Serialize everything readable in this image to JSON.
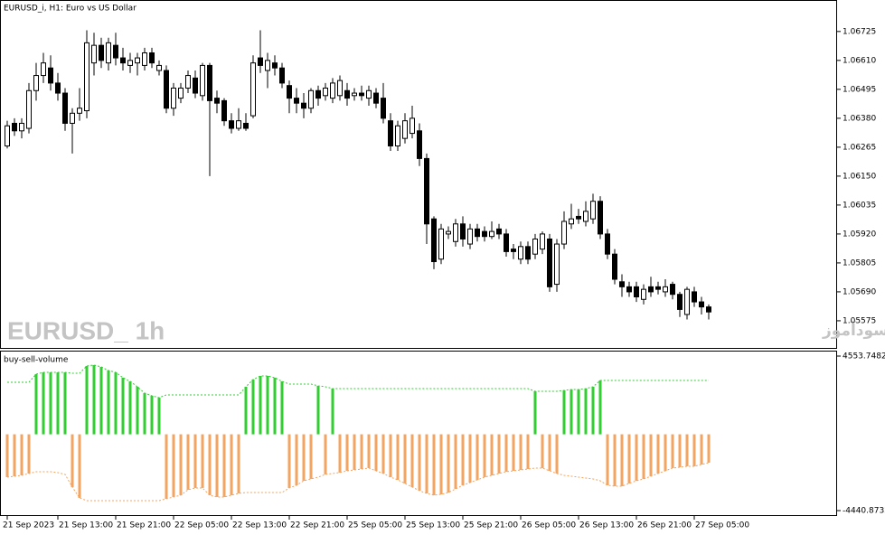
{
  "chart_data": [
    {
      "type": "candlestick",
      "title": "EURUSD_i, H1:  Euro vs US Dollar",
      "watermark": "EURUSD_ 1h",
      "annotation": "انتشار در سایت سودآموز",
      "categories": [
        "21 Sep 2023",
        null,
        null,
        null,
        null,
        null,
        null,
        "21 Sep 13:00",
        null,
        null,
        null,
        null,
        null,
        null,
        null,
        "21 Sep 21:00",
        null,
        null,
        null,
        null,
        null,
        null,
        null,
        "22 Sep 05:00",
        null,
        null,
        null,
        null,
        null,
        null,
        null,
        "22 Sep 13:00",
        null,
        null,
        null,
        null,
        null,
        null,
        null,
        "22 Sep 21:00",
        null,
        null,
        null,
        null,
        null,
        null,
        null,
        "25 Sep 05:00",
        null,
        null,
        null,
        null,
        null,
        null,
        null,
        "25 Sep 13:00",
        null,
        null,
        null,
        null,
        null,
        null,
        null,
        "25 Sep 21:00",
        null,
        null,
        null,
        null,
        null,
        null,
        null,
        "26 Sep 05:00",
        null,
        null,
        null,
        null,
        null,
        null,
        null,
        "26 Sep 13:00",
        null,
        null,
        null,
        null,
        null,
        null,
        null,
        "26 Sep 21:00",
        null,
        null,
        null,
        null,
        null,
        null,
        null,
        "27 Sep 05:00",
        null,
        null
      ],
      "open": [
        1.0627,
        1.0636,
        1.0633,
        1.0634,
        1.0649,
        1.0655,
        1.0658,
        1.0652,
        1.0648,
        1.0636,
        1.064,
        1.0641,
        1.066,
        1.0667,
        1.066,
        1.0667,
        1.0662,
        1.0659,
        1.066,
        1.0659,
        1.0664,
        1.0657,
        1.0657,
        1.0642,
        1.0646,
        1.065,
        1.0654,
        1.0647,
        1.0659,
        1.0646,
        1.0645,
        1.0637,
        1.0634,
        1.0636,
        1.0639,
        1.0662,
        1.0657,
        1.066,
        1.0658,
        1.0651,
        1.0646,
        1.0644,
        1.0642,
        1.0649,
        1.0647,
        1.0646,
        1.0647,
        1.0649,
        1.0647,
        1.0648,
        1.0646,
        1.0648,
        1.0646,
        1.0637,
        1.0627,
        1.063,
        1.0632,
        1.0633,
        1.0622,
        1.0598,
        1.0582,
        1.0592,
        1.0589,
        1.0596,
        1.0588,
        1.0594,
        1.0593,
        1.0591,
        1.0594,
        1.0592,
        1.0586,
        1.0582,
        1.0587,
        1.0584,
        1.0586,
        1.059,
        1.0572,
        1.0588,
        1.0596,
        1.0599,
        1.0597,
        1.0598,
        1.0605,
        1.0592,
        1.0584,
        1.0573,
        1.0571,
        1.0571,
        1.0566,
        1.0571,
        1.0571,
        1.0569,
        1.0572,
        1.0568,
        1.056,
        1.0569,
        1.0565,
        1.0563
      ],
      "high": [
        1.0637,
        1.0638,
        1.0638,
        1.0652,
        1.066,
        1.0664,
        1.0663,
        1.0656,
        1.065,
        1.0642,
        1.065,
        1.0673,
        1.0672,
        1.067,
        1.067,
        1.0672,
        1.0666,
        1.0664,
        1.0664,
        1.0666,
        1.0666,
        1.0661,
        1.0659,
        1.0652,
        1.0652,
        1.0657,
        1.0657,
        1.066,
        1.066,
        1.0649,
        1.0646,
        1.064,
        1.0642,
        1.064,
        1.0663,
        1.0673,
        1.0664,
        1.0663,
        1.066,
        1.0653,
        1.065,
        1.0648,
        1.065,
        1.0651,
        1.0652,
        1.0654,
        1.0655,
        1.0652,
        1.065,
        1.0651,
        1.0651,
        1.065,
        1.0652,
        1.064,
        1.0637,
        1.064,
        1.0643,
        1.0636,
        1.0624,
        1.0599,
        1.0596,
        1.0595,
        1.0598,
        1.0599,
        1.0596,
        1.0596,
        1.0595,
        1.0597,
        1.0596,
        1.0594,
        1.0588,
        1.0589,
        1.0589,
        1.0592,
        1.0593,
        1.0592,
        1.059,
        1.0601,
        1.0604,
        1.0602,
        1.0605,
        1.0608,
        1.0607,
        1.0594,
        1.0586,
        1.0576,
        1.0573,
        1.0573,
        1.0572,
        1.0575,
        1.0573,
        1.0574,
        1.0573,
        1.0569,
        1.0571,
        1.0571,
        1.0567,
        1.0564
      ],
      "low": [
        1.0626,
        1.0631,
        1.063,
        1.0632,
        1.0645,
        1.0652,
        1.0649,
        1.0645,
        1.0633,
        1.0624,
        1.0637,
        1.0638,
        1.0655,
        1.0658,
        1.0657,
        1.0659,
        1.0657,
        1.0656,
        1.0655,
        1.0657,
        1.0658,
        1.0655,
        1.064,
        1.0639,
        1.0644,
        1.0648,
        1.0646,
        1.0645,
        1.0615,
        1.064,
        1.0635,
        1.0632,
        1.0633,
        1.0633,
        1.0638,
        1.0656,
        1.065,
        1.0655,
        1.065,
        1.064,
        1.064,
        1.0638,
        1.064,
        1.0643,
        1.0645,
        1.0644,
        1.0645,
        1.0643,
        1.0645,
        1.0645,
        1.0643,
        1.0642,
        1.0636,
        1.0625,
        1.0625,
        1.0628,
        1.063,
        1.0619,
        1.0588,
        1.0578,
        1.058,
        1.059,
        1.0587,
        1.0587,
        1.0586,
        1.0589,
        1.0589,
        1.059,
        1.059,
        1.0583,
        1.0582,
        1.058,
        1.058,
        1.0582,
        1.0584,
        1.0569,
        1.0569,
        1.0586,
        1.0594,
        1.0596,
        1.0595,
        1.0596,
        1.059,
        1.0582,
        1.0572,
        1.0567,
        1.0567,
        1.0565,
        1.0564,
        1.0567,
        1.0568,
        1.0567,
        1.0566,
        1.0559,
        1.0558,
        1.0563,
        1.056,
        1.0558
      ],
      "close": [
        1.0635,
        1.0633,
        1.0636,
        1.0649,
        1.0655,
        1.066,
        1.0652,
        1.0648,
        1.0636,
        1.064,
        1.0642,
        1.0668,
        1.0667,
        1.0661,
        1.0668,
        1.0662,
        1.066,
        1.0661,
        1.0662,
        1.0664,
        1.066,
        1.0659,
        1.0642,
        1.065,
        1.065,
        1.0655,
        1.0648,
        1.0659,
        1.0645,
        1.0644,
        1.0637,
        1.0634,
        1.0637,
        1.0634,
        1.066,
        1.0659,
        1.0661,
        1.0658,
        1.0652,
        1.0646,
        1.0644,
        1.0642,
        1.0649,
        1.0646,
        1.065,
        1.0652,
        1.0653,
        1.0646,
        1.0648,
        1.0647,
        1.0649,
        1.0644,
        1.0638,
        1.0627,
        1.0635,
        1.0637,
        1.0638,
        1.0622,
        1.0596,
        1.0581,
        1.0594,
        1.0593,
        1.0596,
        1.059,
        1.0594,
        1.0591,
        1.0591,
        1.0593,
        1.0592,
        1.0585,
        1.0585,
        1.0587,
        1.0582,
        1.059,
        1.0592,
        1.0571,
        1.0588,
        1.0597,
        1.0598,
        1.0598,
        1.0601,
        1.0605,
        1.0592,
        1.0584,
        1.0574,
        1.0571,
        1.0569,
        1.0567,
        1.057,
        1.0569,
        1.057,
        1.0571,
        1.0568,
        1.0562,
        1.057,
        1.0565,
        1.0563,
        1.0561
      ],
      "up_color": "#ffffff",
      "down_color": "#000000",
      "edge_color": "#000000",
      "ylim": [
        1.05467,
        1.06843
      ],
      "yticks": [
        1.05575,
        {
          "value": 1.0569,
          "label": "1.05690"
        },
        1.05805,
        {
          "value": 1.0592,
          "label": "1.05920"
        },
        1.06035,
        {
          "value": 1.0615,
          "label": "1.06150"
        },
        1.06265,
        {
          "value": 1.0638,
          "label": "1.06380"
        },
        1.06495,
        {
          "value": 1.0661,
          "label": "1.06610"
        },
        1.06725
      ],
      "grid": false
    },
    {
      "type": "histogram",
      "title": "buy-sell-volume",
      "ylim": [
        -4704,
        4817
      ],
      "yticks": [
        -4440.8732,
        4553.7482
      ],
      "series": [
        {
          "style": "bar",
          "color": "#32cd32",
          "values": [
            null,
            null,
            null,
            null,
            3501,
            3606,
            3606,
            3606,
            3606,
            null,
            null,
            3977,
            4030,
            3924,
            3714,
            3606,
            3293,
            3082,
            2767,
            2399,
            2241,
            2136,
            null,
            null,
            null,
            null,
            null,
            null,
            null,
            null,
            null,
            null,
            null,
            2767,
            3188,
            3398,
            3398,
            3293,
            3082,
            null,
            null,
            null,
            null,
            2820,
            null,
            2662,
            null,
            null,
            null,
            null,
            null,
            null,
            null,
            null,
            null,
            null,
            null,
            null,
            null,
            null,
            null,
            null,
            null,
            null,
            null,
            null,
            null,
            null,
            null,
            null,
            null,
            null,
            null,
            2504,
            null,
            null,
            null,
            2557,
            2609,
            2609,
            2662,
            2767,
            3135,
            null,
            null,
            null,
            null,
            null,
            null,
            null,
            null,
            null,
            null,
            null,
            null,
            null,
            null,
            null
          ]
        },
        {
          "style": "bar",
          "color": "#f4a460",
          "values": [
            -2493,
            -2441,
            -2388,
            -2283,
            null,
            null,
            null,
            null,
            null,
            -3072,
            -3703,
            null,
            null,
            null,
            null,
            null,
            null,
            null,
            null,
            null,
            null,
            null,
            -3756,
            -3650,
            -3545,
            -3230,
            -3124,
            -3124,
            -3545,
            -3650,
            -3650,
            -3545,
            -3440,
            null,
            null,
            null,
            null,
            null,
            null,
            -3124,
            -2967,
            -2704,
            -2598,
            null,
            -2335,
            null,
            -2230,
            -2125,
            -2072,
            -2020,
            -1967,
            -2125,
            -2283,
            -2493,
            -2651,
            -2861,
            -3072,
            -3282,
            -3440,
            -3545,
            -3493,
            -3388,
            -3177,
            -2967,
            -2809,
            -2651,
            -2493,
            -2388,
            -2283,
            -2178,
            -2125,
            -2072,
            -2020,
            null,
            -1967,
            -2125,
            -2283,
            null,
            null,
            null,
            null,
            null,
            null,
            -2967,
            -3019,
            -3019,
            -2861,
            -2704,
            -2598,
            -2441,
            -2283,
            -2125,
            -1967,
            -1915,
            -1862,
            -1862,
            -1757,
            -1652
          ]
        },
        {
          "style": "dashed",
          "color": "#32cd32",
          "values": [
            3030,
            3030,
            3030,
            3030,
            3501,
            3606,
            3606,
            3606,
            3606,
            3553,
            3553,
            3977,
            4030,
            3924,
            3714,
            3606,
            3293,
            3082,
            2767,
            2399,
            2241,
            2136,
            2293,
            2293,
            2293,
            2293,
            2293,
            2293,
            2293,
            2293,
            2293,
            2293,
            2293,
            2767,
            3188,
            3398,
            3398,
            3293,
            3082,
            2925,
            2925,
            2925,
            2925,
            2820,
            2767,
            2662,
            2662,
            2662,
            2662,
            2662,
            2662,
            2662,
            2662,
            2662,
            2662,
            2662,
            2662,
            2662,
            2662,
            2662,
            2662,
            2662,
            2662,
            2662,
            2662,
            2662,
            2662,
            2662,
            2662,
            2662,
            2662,
            2662,
            2662,
            2504,
            2504,
            2504,
            2504,
            2557,
            2609,
            2609,
            2662,
            2767,
            3135,
            3135,
            3135,
            3135,
            3135,
            3135,
            3135,
            3135,
            3135,
            3135,
            3135,
            3135,
            3135,
            3135,
            3135,
            3135
          ]
        },
        {
          "style": "dashed",
          "color": "#f4a460",
          "values": [
            -2493,
            -2441,
            -2388,
            -2283,
            -2178,
            -2178,
            -2178,
            -2230,
            -2335,
            -3072,
            -3703,
            -3861,
            -3861,
            -3861,
            -3861,
            -3861,
            -3861,
            -3861,
            -3861,
            -3861,
            -3861,
            -3861,
            -3756,
            -3650,
            -3545,
            -3230,
            -3124,
            -3124,
            -3545,
            -3650,
            -3650,
            -3545,
            -3440,
            -3388,
            -3388,
            -3388,
            -3388,
            -3388,
            -3388,
            -3124,
            -2967,
            -2704,
            -2598,
            -2493,
            -2335,
            -2283,
            -2230,
            -2125,
            -2072,
            -2020,
            -1967,
            -2125,
            -2283,
            -2493,
            -2651,
            -2861,
            -3072,
            -3282,
            -3440,
            -3545,
            -3493,
            -3388,
            -3177,
            -2967,
            -2809,
            -2651,
            -2493,
            -2388,
            -2283,
            -2178,
            -2125,
            -2072,
            -2020,
            -1967,
            -1967,
            -2125,
            -2283,
            -2388,
            -2441,
            -2493,
            -2546,
            -2598,
            -2704,
            -2967,
            -3019,
            -3019,
            -2861,
            -2704,
            -2598,
            -2441,
            -2283,
            -2125,
            -1967,
            -1915,
            -1862,
            -1862,
            -1757,
            -1652
          ]
        }
      ],
      "grid": false
    }
  ]
}
